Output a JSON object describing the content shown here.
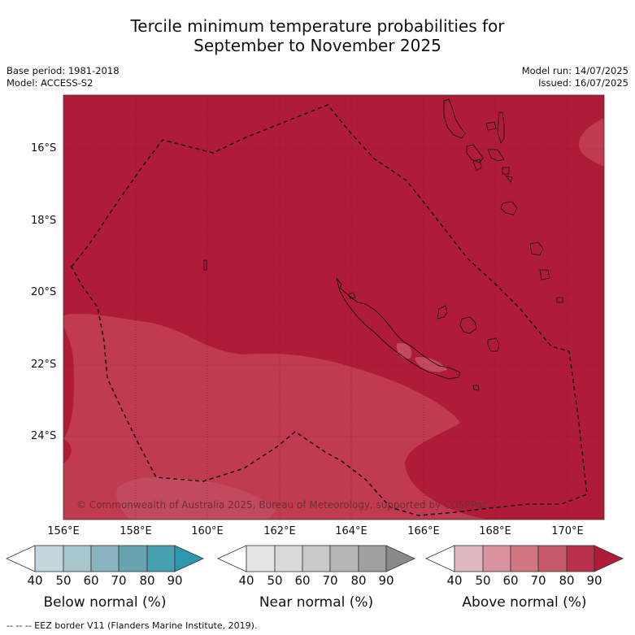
{
  "title": {
    "line1": "Tercile minimum temperature probabilities for",
    "line2": "September to November 2025"
  },
  "meta": {
    "base_period": "Base period: 1981-2018",
    "model": "Model: ACCESS-S2",
    "model_run": "Model run: 14/07/2025",
    "issued": "Issued: 16/07/2025"
  },
  "map": {
    "lat_labels": [
      "16°S",
      "18°S",
      "20°S",
      "22°S",
      "24°S"
    ],
    "lon_labels": [
      "156°E",
      "158°E",
      "160°E",
      "162°E",
      "164°E",
      "166°E",
      "168°E",
      "170°E"
    ],
    "copyright": "© Commonwealth of Australia 2025, Bureau of Meteorology, supported by COSPPac",
    "colors": {
      "above_80_90": "#b01c38",
      "above_70_80": "#c03a50",
      "eez_line": "#111111"
    }
  },
  "legend": {
    "ticks": [
      "40",
      "50",
      "60",
      "70",
      "80",
      "90"
    ],
    "below": {
      "label": "Below normal (%)",
      "colors": [
        "#c3d6dc",
        "#a6c7cd",
        "#88b5bf",
        "#68a3b0",
        "#47a0b0",
        "#2d97ad"
      ]
    },
    "near": {
      "label": "Near normal (%)",
      "colors": [
        "#e6e6e6",
        "#d9d9d9",
        "#c9c9c9",
        "#b6b6b6",
        "#a0a0a0",
        "#8a8a8a"
      ]
    },
    "above": {
      "label": "Above normal (%)",
      "colors": [
        "#dfb7bf",
        "#d9939e",
        "#cf7882",
        "#c45866",
        "#b8304a",
        "#b01c38"
      ]
    }
  },
  "footnote": "--  --  -- EEZ border V11 (Flanders Marine Institute, 2019)."
}
